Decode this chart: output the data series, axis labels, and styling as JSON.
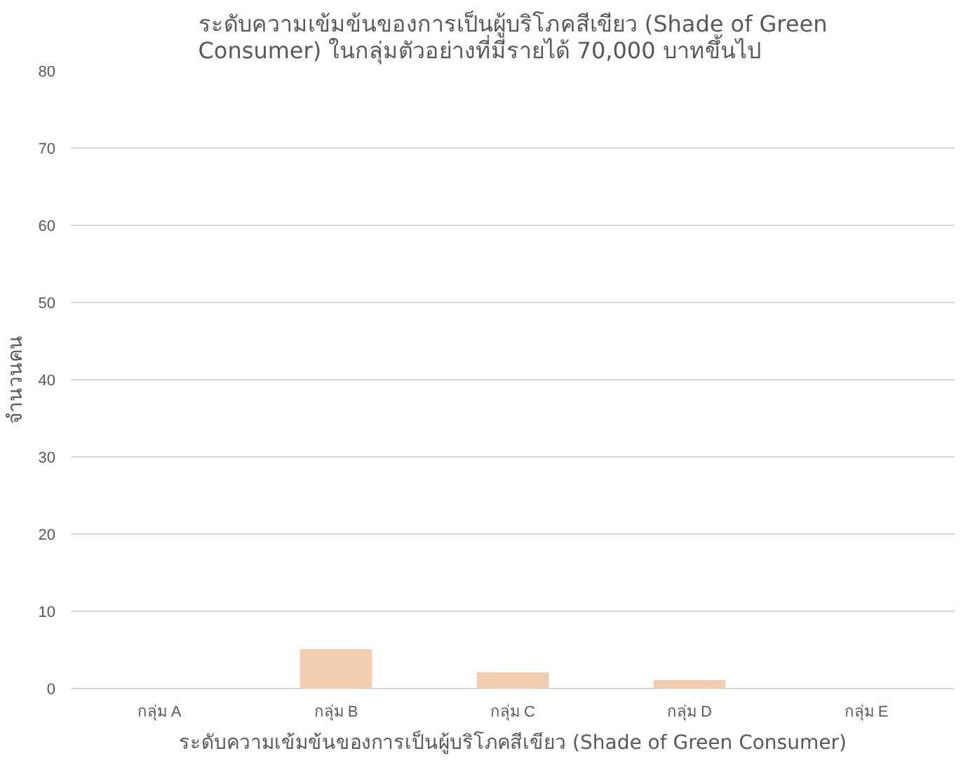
{
  "chart_data": {
    "type": "bar",
    "title": "ระดับความเข้มข้นของการเป็นผู้บริโภคสีเขียว (Shade of Green\nConsumer) ในกลุ่มตัวอย่างที่มีรายได้ 70,000 บาทขึ้นไป",
    "xlabel": "ระดับความเข้มข้นของการเป็นผู้บริโภคสีเขียว (Shade of Green Consumer)",
    "ylabel": "จำนวนคน",
    "categories": [
      "กลุ่ม A",
      "กลุ่ม B",
      "กลุ่ม C",
      "กลุ่ม D",
      "กลุ่ม E"
    ],
    "values": [
      0,
      5,
      2,
      1,
      0
    ],
    "color": "#f2cdb0",
    "ylim": [
      0,
      80
    ],
    "yticks": [
      0,
      10,
      20,
      30,
      40,
      50,
      60,
      70,
      80
    ],
    "grid": "y"
  }
}
